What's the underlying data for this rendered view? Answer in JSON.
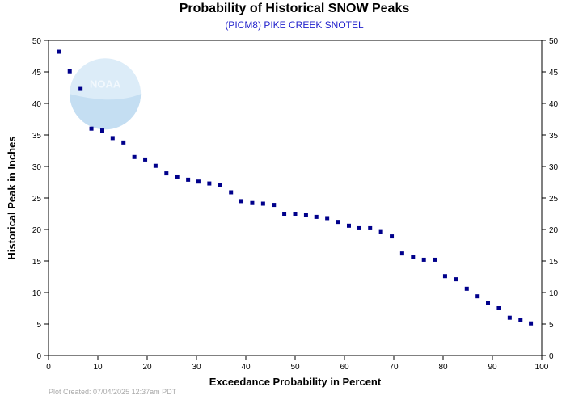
{
  "chart_data": {
    "type": "scatter",
    "title": "Probability of Historical SNOW Peaks",
    "subtitle": "(PICM8) PIKE CREEK SNOTEL",
    "xlabel": "Exceedance Probability in Percent",
    "ylabel": "Historical Peak in Inches",
    "xlim": [
      0,
      100
    ],
    "ylim": [
      0,
      50
    ],
    "xticks": [
      0,
      10,
      20,
      30,
      40,
      50,
      60,
      70,
      80,
      90,
      100
    ],
    "yticks": [
      0,
      5,
      10,
      15,
      20,
      25,
      30,
      35,
      40,
      45,
      50
    ],
    "marker_color": "#00008b",
    "watermark_text": "NOAA",
    "points": [
      {
        "x": 2.2,
        "y": 48.2
      },
      {
        "x": 4.3,
        "y": 45.1
      },
      {
        "x": 6.5,
        "y": 42.3
      },
      {
        "x": 8.7,
        "y": 36.0
      },
      {
        "x": 10.9,
        "y": 35.7
      },
      {
        "x": 13.0,
        "y": 34.5
      },
      {
        "x": 15.2,
        "y": 33.8
      },
      {
        "x": 17.4,
        "y": 31.5
      },
      {
        "x": 19.6,
        "y": 31.1
      },
      {
        "x": 21.7,
        "y": 30.1
      },
      {
        "x": 23.9,
        "y": 28.9
      },
      {
        "x": 26.1,
        "y": 28.4
      },
      {
        "x": 28.3,
        "y": 27.9
      },
      {
        "x": 30.4,
        "y": 27.6
      },
      {
        "x": 32.6,
        "y": 27.3
      },
      {
        "x": 34.8,
        "y": 27.0
      },
      {
        "x": 37.0,
        "y": 25.9
      },
      {
        "x": 39.1,
        "y": 24.5
      },
      {
        "x": 41.3,
        "y": 24.2
      },
      {
        "x": 43.5,
        "y": 24.1
      },
      {
        "x": 45.7,
        "y": 23.9
      },
      {
        "x": 47.8,
        "y": 22.5
      },
      {
        "x": 50.0,
        "y": 22.5
      },
      {
        "x": 52.2,
        "y": 22.3
      },
      {
        "x": 54.3,
        "y": 22.0
      },
      {
        "x": 56.5,
        "y": 21.8
      },
      {
        "x": 58.7,
        "y": 21.2
      },
      {
        "x": 60.9,
        "y": 20.6
      },
      {
        "x": 63.0,
        "y": 20.2
      },
      {
        "x": 65.2,
        "y": 20.2
      },
      {
        "x": 67.4,
        "y": 19.6
      },
      {
        "x": 69.6,
        "y": 18.9
      },
      {
        "x": 71.7,
        "y": 16.2
      },
      {
        "x": 73.9,
        "y": 15.6
      },
      {
        "x": 76.1,
        "y": 15.2
      },
      {
        "x": 78.3,
        "y": 15.2
      },
      {
        "x": 80.4,
        "y": 12.6
      },
      {
        "x": 82.6,
        "y": 12.1
      },
      {
        "x": 84.8,
        "y": 10.6
      },
      {
        "x": 87.0,
        "y": 9.4
      },
      {
        "x": 89.1,
        "y": 8.3
      },
      {
        "x": 91.3,
        "y": 7.5
      },
      {
        "x": 93.5,
        "y": 6.0
      },
      {
        "x": 95.7,
        "y": 5.6
      },
      {
        "x": 97.8,
        "y": 5.1
      }
    ]
  },
  "footer": {
    "note": "Plot Created: 07/04/2025 12:37am PDT"
  }
}
